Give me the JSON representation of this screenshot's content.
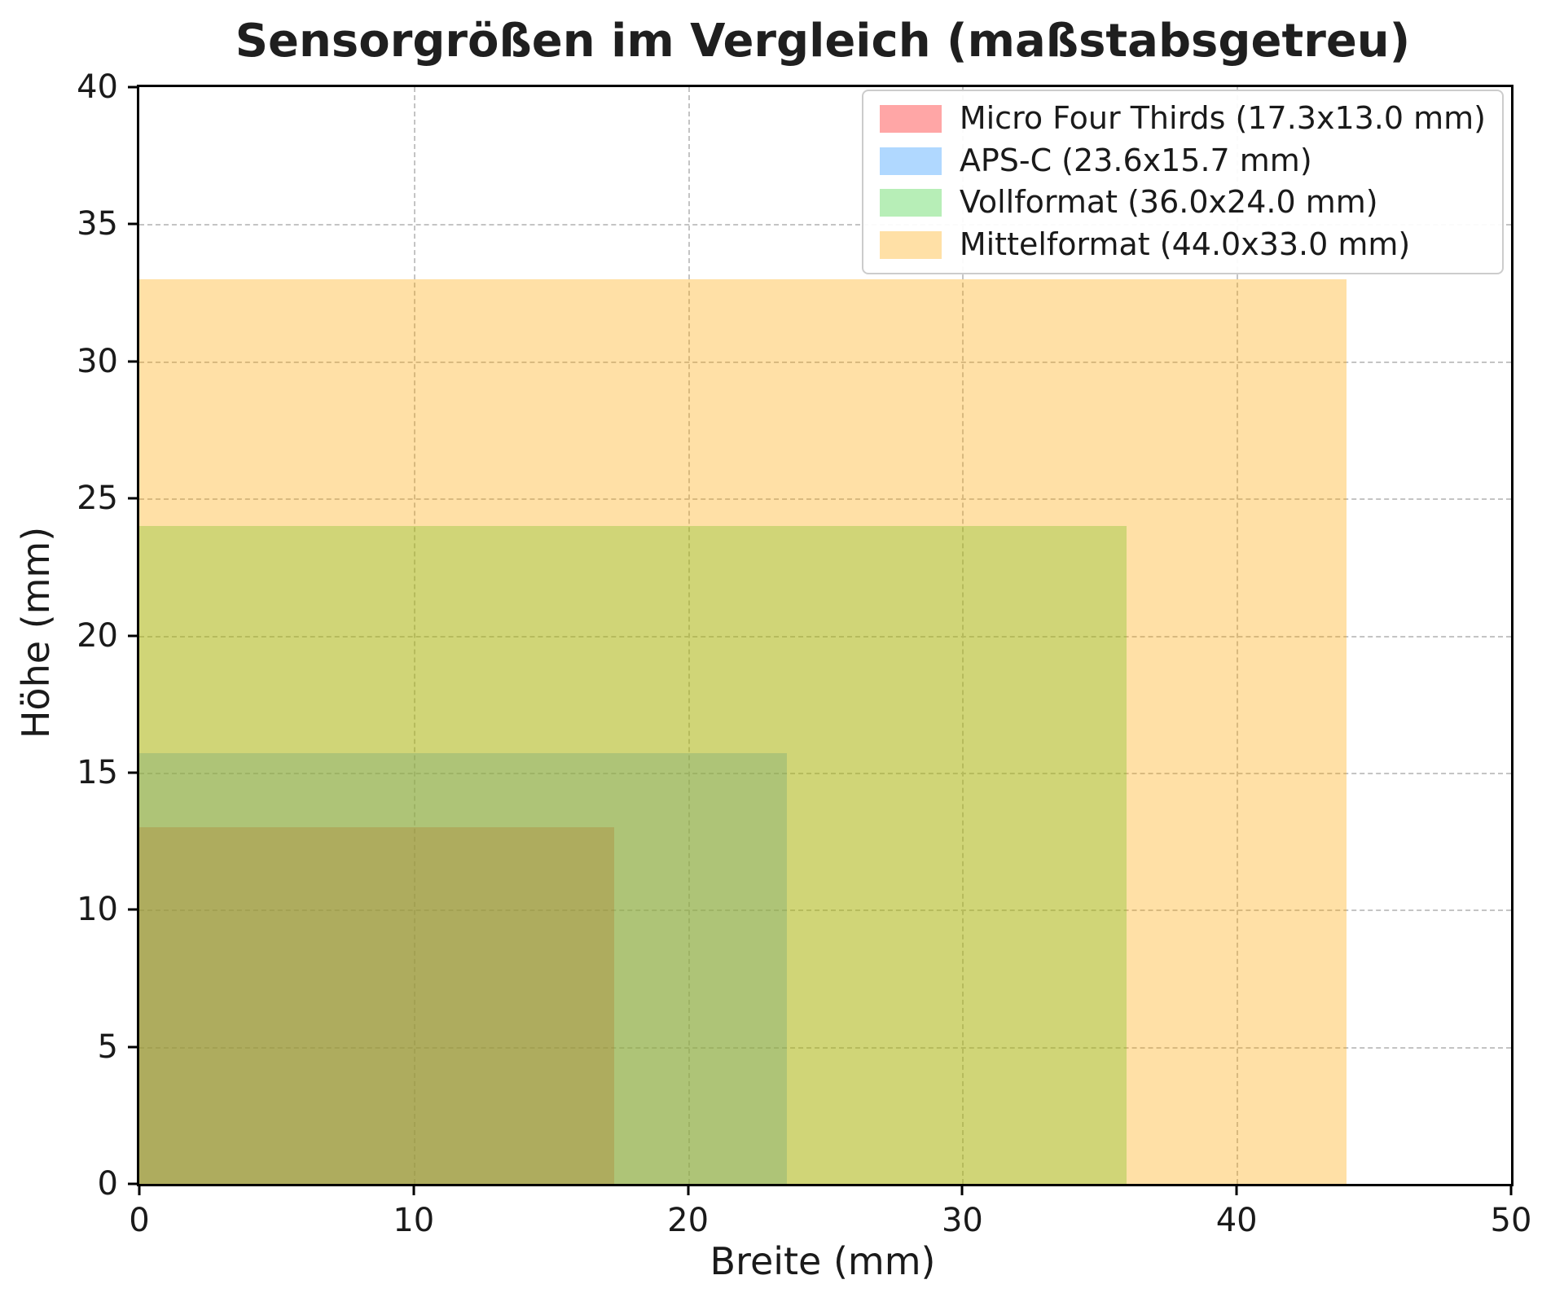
{
  "chart_data": {
    "type": "area",
    "title": "Sensorgrößen im Vergleich (maßstabsgetreu)",
    "xlabel": "Breite (mm)",
    "ylabel": "Höhe (mm)",
    "xlim": [
      0,
      50
    ],
    "ylim": [
      0,
      40
    ],
    "x_ticks": [
      0,
      10,
      20,
      30,
      40,
      50
    ],
    "y_ticks": [
      0,
      5,
      10,
      15,
      20,
      25,
      30,
      35,
      40
    ],
    "grid": true,
    "grid_style": "dashed",
    "legend_position": "upper right",
    "series": [
      {
        "name": "Micro Four Thirds",
        "label": "Micro Four Thirds (17.3x13.0 mm)",
        "width_mm": 17.3,
        "height_mm": 13.0,
        "x0": 0,
        "y0": 0,
        "color": "#ff0000",
        "alpha": 0.35
      },
      {
        "name": "APS-C",
        "label": "APS-C (23.6x15.7 mm)",
        "width_mm": 23.6,
        "height_mm": 15.7,
        "x0": 0,
        "y0": 0,
        "color": "#1e90ff",
        "alpha": 0.35
      },
      {
        "name": "Vollformat",
        "label": "Vollformat (36.0x24.0 mm)",
        "width_mm": 36.0,
        "height_mm": 24.0,
        "x0": 0,
        "y0": 0,
        "color": "#32cd32",
        "alpha": 0.35
      },
      {
        "name": "Mittelformat",
        "label": "Mittelformat (44.0x33.0 mm)",
        "width_mm": 44.0,
        "height_mm": 33.0,
        "x0": 0,
        "y0": 0,
        "color": "#ffa500",
        "alpha": 0.35
      }
    ]
  }
}
